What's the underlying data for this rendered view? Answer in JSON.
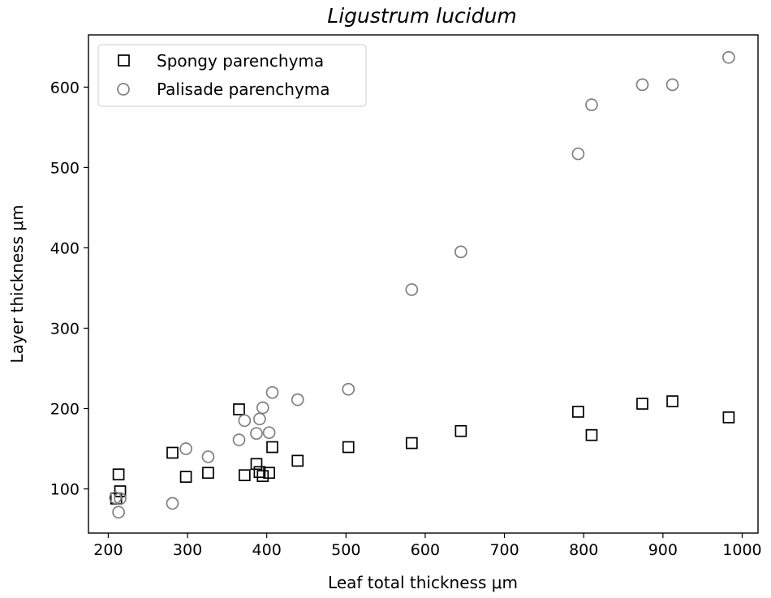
{
  "chart_data": {
    "type": "scatter",
    "title": "Ligustrum lucidum",
    "xlabel": "Leaf total thickness μm",
    "ylabel": "Layer thickness μm",
    "xlim": [
      175,
      1020
    ],
    "ylim": [
      45,
      665
    ],
    "xticks": [
      200,
      300,
      400,
      500,
      600,
      700,
      800,
      900,
      1000
    ],
    "yticks": [
      100,
      200,
      300,
      400,
      500,
      600
    ],
    "grid": false,
    "legend_position": "top-left",
    "series": [
      {
        "name": "Spongy parenchyma",
        "marker": "square",
        "color": "#000000",
        "points": [
          [
            210,
            88
          ],
          [
            213,
            118
          ],
          [
            215,
            97
          ],
          [
            281,
            145
          ],
          [
            298,
            115
          ],
          [
            326,
            120
          ],
          [
            365,
            199
          ],
          [
            372,
            117
          ],
          [
            387,
            131
          ],
          [
            391,
            121
          ],
          [
            395,
            116
          ],
          [
            403,
            120
          ],
          [
            407,
            152
          ],
          [
            439,
            135
          ],
          [
            503,
            152
          ],
          [
            583,
            157
          ],
          [
            645,
            172
          ],
          [
            793,
            196
          ],
          [
            810,
            167
          ],
          [
            874,
            206
          ],
          [
            912,
            209
          ],
          [
            983,
            189
          ]
        ]
      },
      {
        "name": "Palisade parenchyma",
        "marker": "circle",
        "color": "#808080",
        "points": [
          [
            209,
            89
          ],
          [
            213,
            71
          ],
          [
            215,
            88
          ],
          [
            281,
            82
          ],
          [
            298,
            150
          ],
          [
            326,
            140
          ],
          [
            365,
            161
          ],
          [
            372,
            185
          ],
          [
            387,
            169
          ],
          [
            391,
            187
          ],
          [
            395,
            201
          ],
          [
            403,
            170
          ],
          [
            407,
            220
          ],
          [
            439,
            211
          ],
          [
            503,
            224
          ],
          [
            583,
            348
          ],
          [
            645,
            395
          ],
          [
            793,
            517
          ],
          [
            810,
            578
          ],
          [
            874,
            603
          ],
          [
            912,
            603
          ],
          [
            983,
            637
          ]
        ]
      }
    ]
  }
}
